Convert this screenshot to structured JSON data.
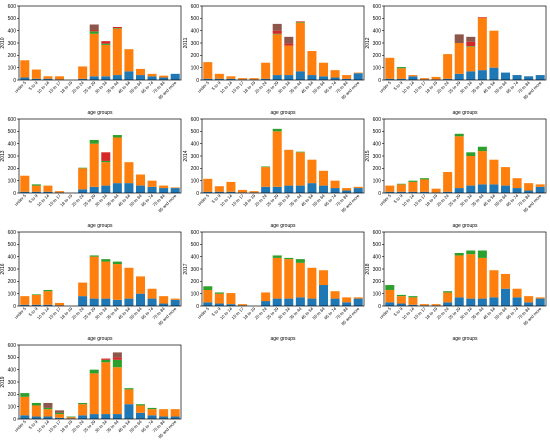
{
  "figure": {
    "y_ticks": [
      "0",
      "100",
      "200",
      "300",
      "400",
      "500",
      "600"
    ],
    "x_axis_label": "age groups",
    "series_colors": [
      "#1f77b4",
      "#ff7f0e",
      "#2ca02c",
      "#d62728",
      "#8c564b"
    ]
  },
  "chart_data": [
    {
      "type": "bar",
      "stacked": true,
      "year": "2010",
      "ylim": [
        0,
        600
      ],
      "xlabel": "age groups",
      "ylabel": "2010",
      "categories": [
        "under 5",
        "5 to 9",
        "10 to 14",
        "15 to 17",
        "18 to 19",
        "20 to 24",
        "25 to 29",
        "30 to 34",
        "35 to 44",
        "45 to 54",
        "55 to 64",
        "65 to 74",
        "75 to 84",
        "85 and more"
      ],
      "series": [
        {
          "values": [
            20,
            10,
            10,
            5,
            0,
            10,
            30,
            30,
            40,
            70,
            40,
            30,
            20,
            50
          ]
        },
        {
          "values": [
            140,
            75,
            20,
            25,
            0,
            100,
            345,
            255,
            375,
            180,
            50,
            20,
            15,
            0
          ]
        },
        {
          "values": [
            0,
            0,
            0,
            0,
            0,
            0,
            20,
            10,
            5,
            0,
            0,
            0,
            0,
            0
          ]
        },
        {
          "values": [
            0,
            0,
            0,
            0,
            0,
            0,
            10,
            20,
            10,
            0,
            0,
            0,
            0,
            0
          ]
        },
        {
          "values": [
            0,
            0,
            0,
            0,
            0,
            0,
            45,
            0,
            0,
            0,
            0,
            0,
            0,
            0
          ]
        }
      ]
    },
    {
      "type": "bar",
      "stacked": true,
      "year": "2011",
      "ylim": [
        0,
        600
      ],
      "xlabel": "age groups",
      "ylabel": "2011",
      "categories": [
        "under 5",
        "5 to 9",
        "10 to 14",
        "15 to 17",
        "18 to 19",
        "20 to 24",
        "25 to 29",
        "30 to 34",
        "35 to 44",
        "45 to 54",
        "55 to 64",
        "65 to 74",
        "75 to 84",
        "85 and more"
      ],
      "series": [
        {
          "values": [
            10,
            10,
            10,
            5,
            5,
            10,
            40,
            40,
            70,
            40,
            30,
            20,
            10,
            55
          ]
        },
        {
          "values": [
            135,
            40,
            20,
            10,
            10,
            130,
            330,
            240,
            395,
            195,
            110,
            60,
            30,
            5
          ]
        },
        {
          "values": [
            0,
            0,
            0,
            0,
            0,
            0,
            5,
            0,
            5,
            0,
            0,
            0,
            0,
            0
          ]
        },
        {
          "values": [
            0,
            0,
            0,
            0,
            0,
            0,
            25,
            15,
            5,
            0,
            0,
            0,
            0,
            0
          ]
        },
        {
          "values": [
            0,
            0,
            0,
            0,
            0,
            0,
            55,
            55,
            0,
            0,
            0,
            0,
            0,
            0
          ]
        }
      ]
    },
    {
      "type": "bar",
      "stacked": true,
      "year": "2012",
      "ylim": [
        0,
        600
      ],
      "xlabel": "age groups",
      "ylabel": "2012",
      "categories": [
        "under 5",
        "5 to 9",
        "10 to 14",
        "15 to 17",
        "18 to 19",
        "20 to 24",
        "25 to 29",
        "30 to 34",
        "35 to 44",
        "45 to 54",
        "55 to 64",
        "65 to 74",
        "75 to 84",
        "85 and more"
      ],
      "series": [
        {
          "values": [
            10,
            10,
            30,
            5,
            5,
            10,
            50,
            70,
            80,
            100,
            60,
            40,
            30,
            40
          ]
        },
        {
          "values": [
            170,
            85,
            10,
            10,
            20,
            200,
            250,
            200,
            425,
            300,
            0,
            0,
            0,
            0
          ]
        },
        {
          "values": [
            0,
            10,
            0,
            0,
            0,
            0,
            0,
            5,
            0,
            0,
            0,
            0,
            0,
            0
          ]
        },
        {
          "values": [
            0,
            0,
            0,
            0,
            0,
            0,
            0,
            35,
            5,
            0,
            0,
            0,
            0,
            0
          ]
        },
        {
          "values": [
            0,
            0,
            0,
            0,
            0,
            0,
            70,
            40,
            0,
            0,
            0,
            0,
            0,
            0
          ]
        }
      ]
    },
    {
      "type": "bar",
      "stacked": true,
      "year": "2013",
      "ylim": [
        0,
        600
      ],
      "xlabel": "age groups",
      "ylabel": "2013",
      "categories": [
        "under 5",
        "5 to 9",
        "10 to 14",
        "15 to 17",
        "18 to 19",
        "20 to 24",
        "25 to 29",
        "30 to 34",
        "35 to 44",
        "45 to 54",
        "55 to 64",
        "65 to 74",
        "75 to 84",
        "85 and more"
      ],
      "series": [
        {
          "values": [
            10,
            10,
            10,
            5,
            0,
            30,
            50,
            60,
            80,
            80,
            60,
            50,
            40,
            40
          ]
        },
        {
          "values": [
            130,
            50,
            50,
            10,
            0,
            170,
            350,
            190,
            370,
            170,
            90,
            50,
            20,
            5
          ]
        },
        {
          "values": [
            0,
            10,
            0,
            0,
            0,
            5,
            30,
            10,
            20,
            0,
            0,
            0,
            0,
            0
          ]
        },
        {
          "values": [
            0,
            0,
            0,
            0,
            0,
            0,
            0,
            70,
            0,
            0,
            0,
            0,
            0,
            0
          ]
        },
        {
          "values": [
            0,
            0,
            0,
            0,
            0,
            0,
            0,
            0,
            0,
            0,
            0,
            0,
            0,
            0
          ]
        }
      ]
    },
    {
      "type": "bar",
      "stacked": true,
      "year": "2014",
      "ylim": [
        0,
        600
      ],
      "xlabel": "age groups",
      "ylabel": "2014",
      "categories": [
        "under 5",
        "5 to 9",
        "10 to 14",
        "15 to 17",
        "18 to 19",
        "20 to 24",
        "25 to 29",
        "30 to 34",
        "35 to 44",
        "45 to 54",
        "55 to 64",
        "65 to 74",
        "75 to 84",
        "85 and more"
      ],
      "series": [
        {
          "values": [
            10,
            10,
            10,
            5,
            5,
            50,
            50,
            60,
            60,
            80,
            60,
            40,
            20,
            40
          ]
        },
        {
          "values": [
            105,
            45,
            80,
            20,
            10,
            160,
            450,
            290,
            270,
            190,
            120,
            60,
            20,
            10
          ]
        },
        {
          "values": [
            0,
            0,
            0,
            0,
            0,
            5,
            20,
            0,
            5,
            0,
            0,
            0,
            0,
            0
          ]
        },
        {
          "values": [
            0,
            0,
            0,
            0,
            0,
            0,
            0,
            0,
            0,
            0,
            0,
            0,
            0,
            0
          ]
        },
        {
          "values": [
            0,
            0,
            0,
            0,
            0,
            0,
            0,
            0,
            0,
            0,
            0,
            0,
            0,
            0
          ]
        }
      ]
    },
    {
      "type": "bar",
      "stacked": true,
      "year": "2015",
      "ylim": [
        0,
        600
      ],
      "xlabel": "age groups",
      "ylabel": "2015",
      "categories": [
        "under 5",
        "5 to 9",
        "10 to 14",
        "15 to 17",
        "18 to 19",
        "20 to 24",
        "25 to 29",
        "30 to 34",
        "35 to 44",
        "45 to 54",
        "55 to 64",
        "65 to 74",
        "75 to 84",
        "85 and more"
      ],
      "series": [
        {
          "values": [
            10,
            10,
            10,
            10,
            5,
            10,
            40,
            60,
            70,
            70,
            60,
            40,
            20,
            50
          ]
        },
        {
          "values": [
            50,
            60,
            80,
            100,
            30,
            160,
            420,
            240,
            270,
            200,
            150,
            80,
            60,
            20
          ]
        },
        {
          "values": [
            0,
            5,
            10,
            10,
            0,
            0,
            20,
            30,
            35,
            0,
            0,
            0,
            0,
            0
          ]
        },
        {
          "values": [
            0,
            0,
            0,
            0,
            0,
            0,
            0,
            0,
            0,
            0,
            0,
            0,
            0,
            0
          ]
        },
        {
          "values": [
            0,
            0,
            0,
            0,
            0,
            0,
            0,
            0,
            0,
            0,
            0,
            0,
            0,
            0
          ]
        }
      ]
    },
    {
      "type": "bar",
      "stacked": true,
      "year": "2016",
      "ylim": [
        0,
        600
      ],
      "xlabel": "age groups",
      "ylabel": "2016",
      "categories": [
        "under 5",
        "5 to 9",
        "10 to 14",
        "15 to 17",
        "18 to 19",
        "20 to 24",
        "25 to 29",
        "30 to 34",
        "35 to 44",
        "45 to 54",
        "55 to 64",
        "65 to 74",
        "75 to 84",
        "85 and more"
      ],
      "series": [
        {
          "values": [
            10,
            10,
            10,
            5,
            0,
            80,
            60,
            60,
            50,
            60,
            100,
            60,
            20,
            50
          ]
        },
        {
          "values": [
            70,
            80,
            110,
            20,
            0,
            110,
            340,
            300,
            290,
            250,
            140,
            80,
            60,
            10
          ]
        },
        {
          "values": [
            0,
            5,
            10,
            0,
            0,
            0,
            10,
            20,
            20,
            0,
            0,
            0,
            0,
            0
          ]
        },
        {
          "values": [
            0,
            0,
            0,
            0,
            0,
            0,
            0,
            0,
            0,
            0,
            0,
            0,
            0,
            0
          ]
        },
        {
          "values": [
            0,
            0,
            0,
            0,
            0,
            0,
            0,
            0,
            0,
            0,
            0,
            0,
            0,
            0
          ]
        }
      ]
    },
    {
      "type": "bar",
      "stacked": true,
      "year": "2017",
      "ylim": [
        0,
        600
      ],
      "xlabel": "age groups",
      "ylabel": "2017",
      "categories": [
        "under 5",
        "5 to 9",
        "10 to 14",
        "15 to 17",
        "18 to 19",
        "20 to 24",
        "25 to 29",
        "30 to 34",
        "35 to 44",
        "45 to 54",
        "55 to 64",
        "65 to 74",
        "75 to 84",
        "85 and more"
      ],
      "series": [
        {
          "values": [
            30,
            20,
            15,
            5,
            0,
            40,
            60,
            60,
            70,
            60,
            170,
            60,
            30,
            60
          ]
        },
        {
          "values": [
            100,
            80,
            90,
            10,
            0,
            70,
            330,
            320,
            280,
            250,
            120,
            60,
            40,
            10
          ]
        },
        {
          "values": [
            30,
            10,
            0,
            0,
            0,
            0,
            20,
            10,
            30,
            0,
            0,
            0,
            0,
            0
          ]
        },
        {
          "values": [
            0,
            0,
            0,
            0,
            0,
            0,
            0,
            0,
            0,
            0,
            0,
            0,
            0,
            0
          ]
        },
        {
          "values": [
            0,
            0,
            0,
            0,
            0,
            0,
            0,
            0,
            0,
            0,
            0,
            0,
            0,
            0
          ]
        }
      ]
    },
    {
      "type": "bar",
      "stacked": true,
      "year": "2018",
      "ylim": [
        0,
        600
      ],
      "xlabel": "age groups",
      "ylabel": "2018",
      "categories": [
        "under 5",
        "5 to 9",
        "10 to 14",
        "15 to 17",
        "18 to 19",
        "20 to 24",
        "25 to 29",
        "30 to 34",
        "35 to 44",
        "45 to 54",
        "55 to 64",
        "65 to 74",
        "75 to 84",
        "85 and more"
      ],
      "series": [
        {
          "values": [
            30,
            20,
            10,
            5,
            5,
            30,
            70,
            60,
            60,
            70,
            140,
            70,
            30,
            60
          ]
        },
        {
          "values": [
            100,
            60,
            60,
            10,
            10,
            80,
            340,
            360,
            330,
            220,
            120,
            70,
            50,
            10
          ]
        },
        {
          "values": [
            40,
            10,
            10,
            0,
            0,
            10,
            20,
            30,
            60,
            0,
            0,
            0,
            0,
            0
          ]
        },
        {
          "values": [
            0,
            0,
            0,
            0,
            0,
            0,
            0,
            0,
            0,
            0,
            0,
            0,
            0,
            0
          ]
        },
        {
          "values": [
            0,
            0,
            0,
            0,
            0,
            0,
            0,
            0,
            0,
            0,
            0,
            0,
            0,
            0
          ]
        }
      ]
    },
    {
      "type": "bar",
      "stacked": true,
      "year": "2019",
      "ylim": [
        0,
        600
      ],
      "xlabel": "age groups",
      "ylabel": "2019",
      "categories": [
        "under 5",
        "5 to 9",
        "10 to 14",
        "15 to 17",
        "18 to 19",
        "20 to 24",
        "25 to 29",
        "30 to 34",
        "35 to 44",
        "45 to 54",
        "55 to 64",
        "65 to 74",
        "75 to 84",
        "85 and more"
      ],
      "series": [
        {
          "values": [
            30,
            20,
            20,
            10,
            5,
            30,
            40,
            40,
            40,
            120,
            50,
            30,
            20,
            20
          ]
        },
        {
          "values": [
            150,
            90,
            60,
            30,
            10,
            90,
            330,
            420,
            380,
            120,
            60,
            50,
            60,
            60
          ]
        },
        {
          "values": [
            30,
            20,
            10,
            10,
            5,
            10,
            30,
            20,
            60,
            10,
            10,
            10,
            0,
            0
          ]
        },
        {
          "values": [
            0,
            0,
            0,
            0,
            0,
            0,
            0,
            10,
            20,
            0,
            0,
            0,
            0,
            0
          ]
        },
        {
          "values": [
            0,
            0,
            40,
            20,
            0,
            0,
            0,
            0,
            40,
            0,
            0,
            0,
            0,
            0
          ]
        }
      ]
    }
  ]
}
